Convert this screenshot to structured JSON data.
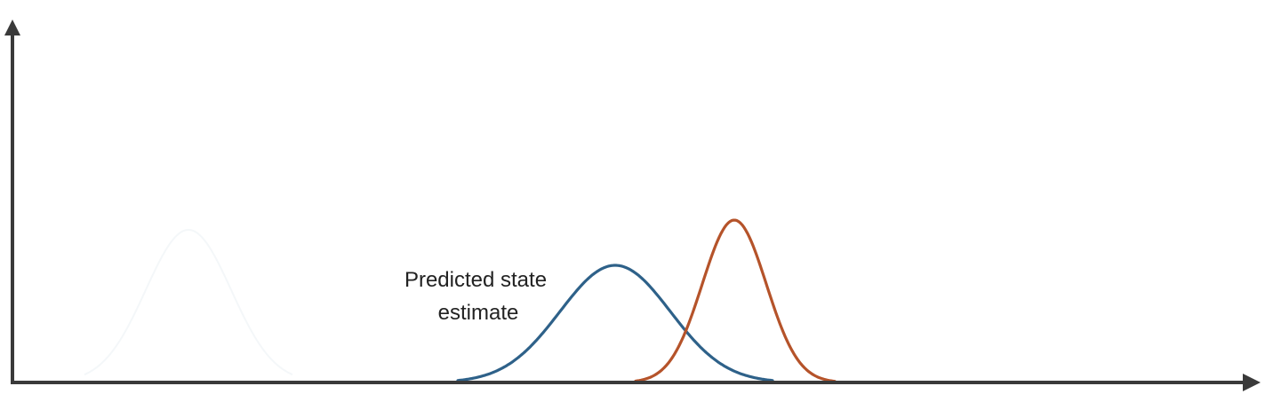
{
  "diagram": {
    "annotation_lines": [
      "Predicted state",
      "estimate"
    ],
    "curves": [
      {
        "name": "predicted-state-curve",
        "color": "#2e6189",
        "visible": true
      },
      {
        "name": "measurement-curve",
        "color": "#b5532a",
        "visible": true
      },
      {
        "name": "faded-prior-curve",
        "color": "#f4f7f9",
        "visible": "faint"
      }
    ],
    "axes": {
      "color": "#3a3a3a",
      "x_arrow": true,
      "y_arrow": true
    }
  }
}
